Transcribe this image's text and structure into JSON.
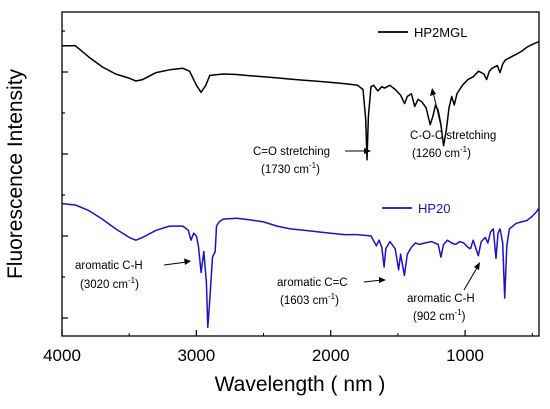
{
  "chart_data": {
    "type": "line",
    "xlabel": "Wavelength ( nm )",
    "ylabel": "Fluorescence Intensity",
    "xlim": [
      4000,
      450
    ],
    "x_reversed": true,
    "x_ticks": [
      "4000",
      "3000",
      "2000",
      "1000"
    ],
    "x_tick_values": [
      4000,
      3000,
      2000,
      1000
    ],
    "y_tick_labels_shown": false,
    "legend_placement": "inside, right of each trace",
    "grid": false,
    "series": [
      {
        "name": "HP2MGL",
        "color": "#000000",
        "points": [
          [
            4000,
            10.0
          ],
          [
            3900,
            10.0
          ],
          [
            3800,
            9.6
          ],
          [
            3700,
            9.25
          ],
          [
            3600,
            9.0
          ],
          [
            3500,
            8.85
          ],
          [
            3450,
            8.75
          ],
          [
            3400,
            8.8
          ],
          [
            3300,
            9.05
          ],
          [
            3200,
            9.15
          ],
          [
            3100,
            9.2
          ],
          [
            3050,
            9.1
          ],
          [
            3000,
            8.6
          ],
          [
            2965,
            8.35
          ],
          [
            2930,
            8.6
          ],
          [
            2900,
            8.95
          ],
          [
            2800,
            9.0
          ],
          [
            2700,
            8.98
          ],
          [
            2600,
            8.94
          ],
          [
            2500,
            8.9
          ],
          [
            2400,
            8.86
          ],
          [
            2300,
            8.82
          ],
          [
            2200,
            8.78
          ],
          [
            2100,
            8.74
          ],
          [
            2000,
            8.7
          ],
          [
            1900,
            8.66
          ],
          [
            1850,
            8.63
          ],
          [
            1800,
            8.6
          ],
          [
            1760,
            8.45
          ],
          [
            1740,
            7.4
          ],
          [
            1730,
            5.95
          ],
          [
            1720,
            7.5
          ],
          [
            1700,
            8.55
          ],
          [
            1680,
            8.6
          ],
          [
            1650,
            8.4
          ],
          [
            1620,
            8.55
          ],
          [
            1600,
            8.5
          ],
          [
            1560,
            8.6
          ],
          [
            1520,
            8.45
          ],
          [
            1480,
            8.25
          ],
          [
            1450,
            7.95
          ],
          [
            1430,
            8.2
          ],
          [
            1400,
            8.3
          ],
          [
            1375,
            7.85
          ],
          [
            1350,
            8.1
          ],
          [
            1320,
            8.0
          ],
          [
            1290,
            7.8
          ],
          [
            1260,
            7.2
          ],
          [
            1240,
            7.5
          ],
          [
            1220,
            7.9
          ],
          [
            1200,
            7.7
          ],
          [
            1180,
            7.2
          ],
          [
            1160,
            6.45
          ],
          [
            1140,
            7.0
          ],
          [
            1120,
            7.8
          ],
          [
            1100,
            8.2
          ],
          [
            1080,
            7.9
          ],
          [
            1060,
            8.3
          ],
          [
            1020,
            8.6
          ],
          [
            980,
            8.8
          ],
          [
            940,
            8.9
          ],
          [
            900,
            9.1
          ],
          [
            860,
            9.0
          ],
          [
            840,
            8.8
          ],
          [
            820,
            9.1
          ],
          [
            800,
            9.2
          ],
          [
            760,
            9.3
          ],
          [
            740,
            9.05
          ],
          [
            720,
            9.35
          ],
          [
            700,
            9.5
          ],
          [
            660,
            9.6
          ],
          [
            620,
            9.7
          ],
          [
            580,
            9.8
          ],
          [
            540,
            9.95
          ],
          [
            500,
            10.05
          ],
          [
            450,
            10.15
          ]
        ]
      },
      {
        "name": "HP20",
        "color": "#1a12c8",
        "points": [
          [
            4000,
            4.4
          ],
          [
            3900,
            4.35
          ],
          [
            3800,
            4.15
          ],
          [
            3700,
            3.85
          ],
          [
            3600,
            3.5
          ],
          [
            3500,
            3.2
          ],
          [
            3450,
            3.1
          ],
          [
            3400,
            3.2
          ],
          [
            3300,
            3.45
          ],
          [
            3200,
            3.6
          ],
          [
            3100,
            3.6
          ],
          [
            3060,
            3.45
          ],
          [
            3040,
            3.1
          ],
          [
            3020,
            3.35
          ],
          [
            3000,
            3.25
          ],
          [
            2985,
            2.9
          ],
          [
            2965,
            1.95
          ],
          [
            2945,
            2.7
          ],
          [
            2925,
            1.6
          ],
          [
            2915,
            0.0
          ],
          [
            2900,
            1.0
          ],
          [
            2880,
            2.5
          ],
          [
            2860,
            2.7
          ],
          [
            2850,
            3.6
          ],
          [
            2830,
            3.75
          ],
          [
            2800,
            3.85
          ],
          [
            2700,
            3.88
          ],
          [
            2600,
            3.82
          ],
          [
            2500,
            3.75
          ],
          [
            2400,
            3.6
          ],
          [
            2300,
            3.5
          ],
          [
            2200,
            3.45
          ],
          [
            2100,
            3.4
          ],
          [
            2000,
            3.35
          ],
          [
            1900,
            3.3
          ],
          [
            1800,
            3.3
          ],
          [
            1700,
            3.25
          ],
          [
            1660,
            2.9
          ],
          [
            1640,
            3.1
          ],
          [
            1620,
            2.85
          ],
          [
            1603,
            2.15
          ],
          [
            1590,
            2.8
          ],
          [
            1560,
            3.05
          ],
          [
            1520,
            2.8
          ],
          [
            1495,
            2.05
          ],
          [
            1480,
            2.6
          ],
          [
            1452,
            1.85
          ],
          [
            1430,
            2.6
          ],
          [
            1400,
            2.85
          ],
          [
            1370,
            3.0
          ],
          [
            1340,
            2.95
          ],
          [
            1300,
            3.0
          ],
          [
            1250,
            3.05
          ],
          [
            1200,
            2.95
          ],
          [
            1180,
            2.5
          ],
          [
            1160,
            2.95
          ],
          [
            1130,
            3.1
          ],
          [
            1100,
            3.0
          ],
          [
            1070,
            2.95
          ],
          [
            1040,
            3.05
          ],
          [
            1010,
            3.0
          ],
          [
            980,
            2.85
          ],
          [
            960,
            2.8
          ],
          [
            940,
            3.1
          ],
          [
            902,
            2.55
          ],
          [
            880,
            3.05
          ],
          [
            850,
            3.2
          ],
          [
            830,
            3.0
          ],
          [
            810,
            3.4
          ],
          [
            790,
            3.5
          ],
          [
            770,
            2.45
          ],
          [
            755,
            3.35
          ],
          [
            740,
            3.5
          ],
          [
            720,
            3.0
          ],
          [
            705,
            1.05
          ],
          [
            690,
            2.9
          ],
          [
            670,
            3.5
          ],
          [
            620,
            3.7
          ],
          [
            580,
            3.75
          ],
          [
            540,
            3.8
          ],
          [
            500,
            3.95
          ],
          [
            470,
            4.1
          ],
          [
            450,
            4.25
          ]
        ]
      }
    ],
    "annotations": [
      {
        "line1": "C=O stretching",
        "line2_value": "(1730 cm",
        "line2_exp": "-1",
        "line2_end": ")",
        "target_x": 1730,
        "target_y": 5.95,
        "color": "#000000"
      },
      {
        "line1": "C-O-C stretching",
        "line2_value": "(1260 cm",
        "line2_exp": "-1",
        "line2_end": ")",
        "target_x": 1260,
        "target_y": 7.2,
        "color": "#000000"
      },
      {
        "line1": "aromatic C-H",
        "line2_value": "(3020 cm",
        "line2_exp": "-1",
        "line2_end": ")",
        "target_x": 3020,
        "target_y": 3.35,
        "color": "#000000"
      },
      {
        "line1": "aromatic C=C",
        "line2_value": "(1603 cm",
        "line2_exp": "-1",
        "line2_end": ")",
        "target_x": 1603,
        "target_y": 2.15,
        "color": "#000000"
      },
      {
        "line1": "aromatic C-H",
        "line2_value": "(902 cm",
        "line2_exp": "-1",
        "line2_end": ")",
        "target_x": 902,
        "target_y": 2.55,
        "color": "#000000"
      }
    ]
  }
}
